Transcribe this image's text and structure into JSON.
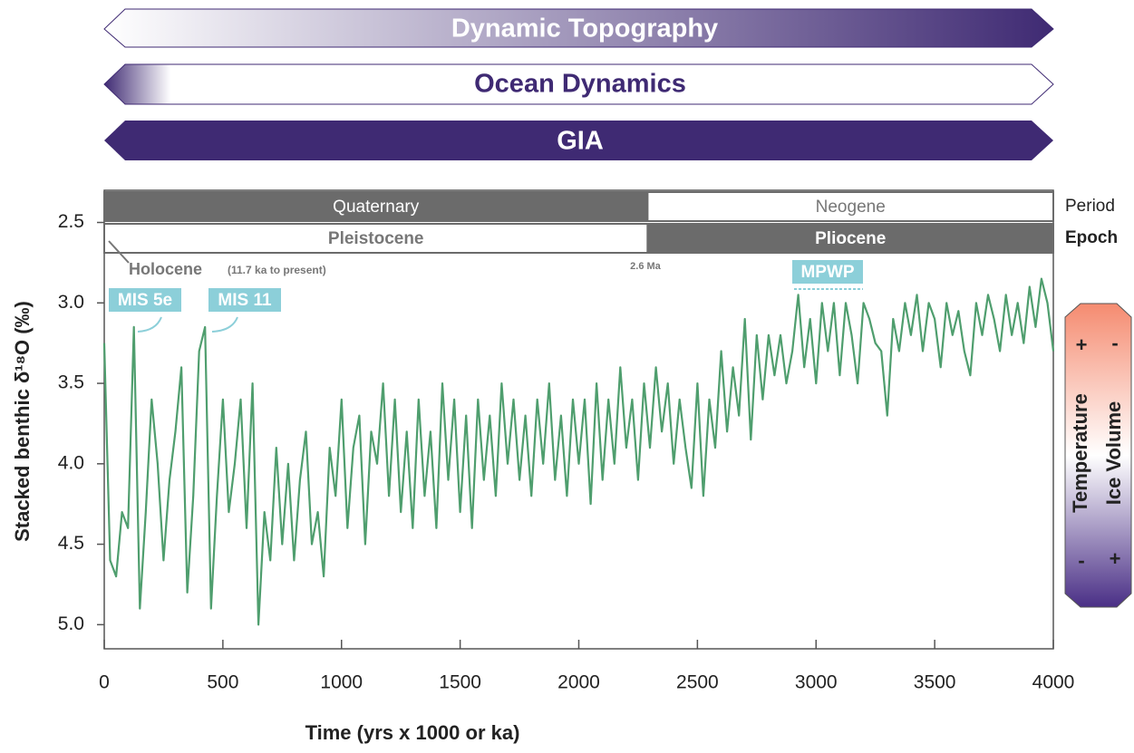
{
  "chart_data": {
    "type": "line",
    "banners": [
      "Dynamic Topography",
      "Ocean Dynamics",
      "GIA"
    ],
    "x_label": "Time (yrs x 1000 or ka)",
    "y_label": "Stacked benthic δ¹⁸O (‰)",
    "color": "#4f9e6e",
    "xlim": [
      0,
      4000
    ],
    "ylim": [
      2.3,
      5.15
    ],
    "xticks": [
      0,
      500,
      1000,
      1500,
      2000,
      2500,
      3000,
      3500,
      4000
    ],
    "yticks": [
      2.5,
      {
        "value": 3,
        "label": "3.0"
      },
      3.5,
      {
        "value": 4,
        "label": "4.0"
      },
      4.5,
      {
        "value": 5,
        "label": "5.0"
      }
    ],
    "time_rows": [
      {
        "label": "Period",
        "units": [
          {
            "name": "Quaternary",
            "start": 0,
            "end": 2290
          },
          {
            "name": "Neogene",
            "start": 2290,
            "end": 4000
          }
        ]
      },
      {
        "label": "Epoch",
        "units": [
          {
            "name": "Pleistocene",
            "start": 0,
            "end": 2290
          },
          {
            "name": "Pliocene",
            "start": 2290,
            "end": 4000
          }
        ]
      }
    ],
    "annotations": {
      "holocene": "Holocene",
      "holocene_note": "(11.7 ka to present)",
      "mis5e": "MIS 5e",
      "mis11": "MIS 11",
      "boundary": "2.6 Ma",
      "mpwp": "MPWP"
    },
    "side_scale": {
      "temperature": "Temperature",
      "ice_volume": "Ice Volume",
      "top_signs": [
        "+",
        "-"
      ],
      "bottom_signs": [
        "-",
        "+"
      ]
    },
    "x": [
      0,
      25,
      50,
      75,
      100,
      125,
      150,
      175,
      200,
      225,
      250,
      275,
      300,
      325,
      350,
      375,
      400,
      425,
      450,
      475,
      500,
      525,
      550,
      575,
      600,
      625,
      650,
      675,
      700,
      725,
      750,
      775,
      800,
      825,
      850,
      875,
      900,
      925,
      950,
      975,
      1000,
      1025,
      1050,
      1075,
      1100,
      1125,
      1150,
      1175,
      1200,
      1225,
      1250,
      1275,
      1300,
      1325,
      1350,
      1375,
      1400,
      1425,
      1450,
      1475,
      1500,
      1525,
      1550,
      1575,
      1600,
      1625,
      1650,
      1675,
      1700,
      1725,
      1750,
      1775,
      1800,
      1825,
      1850,
      1875,
      1900,
      1925,
      1950,
      1975,
      2000,
      2025,
      2050,
      2075,
      2100,
      2125,
      2150,
      2175,
      2200,
      2225,
      2250,
      2275,
      2300,
      2325,
      2350,
      2375,
      2400,
      2425,
      2450,
      2475,
      2500,
      2525,
      2550,
      2575,
      2600,
      2625,
      2650,
      2675,
      2700,
      2725,
      2750,
      2775,
      2800,
      2825,
      2850,
      2875,
      2900,
      2925,
      2950,
      2975,
      3000,
      3025,
      3050,
      3075,
      3100,
      3125,
      3150,
      3175,
      3200,
      3225,
      3250,
      3275,
      3300,
      3325,
      3350,
      3375,
      3400,
      3425,
      3450,
      3475,
      3500,
      3525,
      3550,
      3575,
      3600,
      3625,
      3650,
      3675,
      3700,
      3725,
      3750,
      3775,
      3800,
      3825,
      3850,
      3875,
      3900,
      3925,
      3950,
      3975,
      4000
    ],
    "values": [
      3.25,
      4.6,
      4.7,
      4.3,
      4.4,
      3.15,
      4.9,
      4.3,
      3.6,
      4.0,
      4.6,
      4.1,
      3.8,
      3.4,
      4.8,
      4.2,
      3.3,
      3.15,
      4.9,
      4.2,
      3.6,
      4.3,
      4.0,
      3.6,
      4.4,
      3.5,
      5.0,
      4.3,
      4.6,
      3.9,
      4.5,
      4.0,
      4.6,
      4.1,
      3.8,
      4.5,
      4.3,
      4.7,
      3.9,
      4.2,
      3.6,
      4.4,
      3.9,
      3.7,
      4.5,
      3.8,
      4.0,
      3.5,
      4.2,
      3.6,
      4.3,
      3.8,
      4.4,
      3.6,
      4.2,
      3.8,
      4.4,
      3.5,
      4.1,
      3.6,
      4.3,
      3.7,
      4.4,
      3.6,
      4.1,
      3.7,
      4.2,
      3.5,
      4.0,
      3.6,
      4.1,
      3.7,
      4.2,
      3.6,
      4.0,
      3.5,
      4.1,
      3.7,
      4.2,
      3.6,
      4.0,
      3.6,
      4.25,
      3.5,
      4.1,
      3.6,
      4.0,
      3.4,
      3.9,
      3.6,
      4.1,
      3.5,
      3.9,
      3.4,
      3.8,
      3.5,
      4.0,
      3.6,
      3.9,
      4.15,
      3.5,
      4.2,
      3.6,
      3.9,
      3.3,
      3.8,
      3.4,
      3.7,
      3.1,
      3.85,
      3.2,
      3.6,
      3.2,
      3.45,
      3.2,
      3.5,
      3.3,
      2.95,
      3.4,
      3.1,
      3.5,
      3.0,
      3.3,
      3.0,
      3.45,
      3.0,
      3.2,
      3.5,
      3.0,
      3.1,
      3.25,
      3.3,
      3.7,
      3.1,
      3.3,
      3.0,
      3.2,
      2.95,
      3.3,
      3.0,
      3.1,
      3.4,
      3.0,
      3.2,
      3.05,
      3.3,
      3.45,
      3.0,
      3.2,
      2.95,
      3.1,
      3.3,
      2.95,
      3.2,
      3.0,
      3.25,
      2.9,
      3.15,
      2.85,
      3.0,
      3.3
    ]
  }
}
